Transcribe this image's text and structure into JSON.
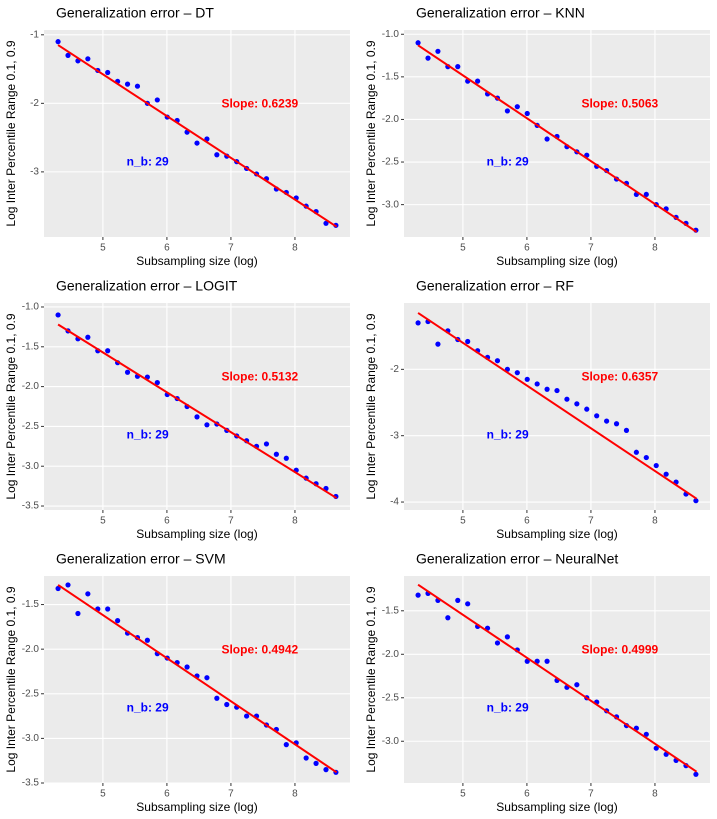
{
  "chart_data": [
    {
      "type": "scatter",
      "title": "Generalization error – DT",
      "x_label": "Subsampling size (log)",
      "y_label": "Log Inter Percentile Range 0.1, 0.9",
      "x": [
        4.3,
        4.455,
        4.61,
        4.765,
        4.92,
        5.075,
        5.23,
        5.385,
        5.54,
        5.695,
        5.85,
        6.005,
        6.16,
        6.315,
        6.47,
        6.625,
        6.78,
        6.935,
        7.09,
        7.245,
        7.4,
        7.555,
        7.71,
        7.865,
        8.02,
        8.175,
        8.33,
        8.485,
        8.64
      ],
      "values": [
        -1.1,
        -1.3,
        -1.38,
        -1.35,
        -1.52,
        -1.55,
        -1.68,
        -1.72,
        -1.75,
        -2.0,
        -1.95,
        -2.2,
        -2.25,
        -2.42,
        -2.58,
        -2.52,
        -2.75,
        -2.77,
        -2.85,
        -2.95,
        -3.03,
        -3.1,
        -3.25,
        -3.3,
        -3.38,
        -3.5,
        -3.58,
        -3.75,
        -3.78
      ],
      "color": "#0000ff",
      "fit": {
        "x": [
          4.3,
          8.65
        ],
        "y": [
          -1.15,
          -3.8
        ],
        "color": "#ff0000"
      },
      "annotations": [
        {
          "text": "Slope: 0.6239",
          "color": "#ff0000"
        },
        {
          "text": "n_b: 29",
          "color": "#0000ff"
        }
      ],
      "xlim": [
        4.08,
        8.86
      ],
      "ylim": [
        -3.95,
        -0.93
      ],
      "xticks": [
        5,
        6,
        7,
        8
      ],
      "yticks": [
        -3,
        -2,
        -1
      ],
      "grid": true
    },
    {
      "type": "scatter",
      "title": "Generalization error – KNN",
      "x_label": "Subsampling size (log)",
      "y_label": "Log Inter Percentile Range 0.1, 0.9",
      "x": [
        4.3,
        4.455,
        4.61,
        4.765,
        4.92,
        5.075,
        5.23,
        5.385,
        5.54,
        5.695,
        5.85,
        6.005,
        6.16,
        6.315,
        6.47,
        6.625,
        6.78,
        6.935,
        7.09,
        7.245,
        7.4,
        7.555,
        7.71,
        7.865,
        8.02,
        8.175,
        8.33,
        8.485,
        8.64
      ],
      "values": [
        -1.1,
        -1.28,
        -1.2,
        -1.38,
        -1.38,
        -1.55,
        -1.55,
        -1.7,
        -1.75,
        -1.9,
        -1.85,
        -1.93,
        -2.07,
        -2.23,
        -2.2,
        -2.32,
        -2.38,
        -2.42,
        -2.55,
        -2.6,
        -2.7,
        -2.75,
        -2.88,
        -2.88,
        -3.0,
        -3.05,
        -3.15,
        -3.22,
        -3.3
      ],
      "color": "#0000ff",
      "fit": {
        "x": [
          4.3,
          8.65
        ],
        "y": [
          -1.13,
          -3.32
        ],
        "color": "#ff0000"
      },
      "annotations": [
        {
          "text": "Slope: 0.5063",
          "color": "#ff0000"
        },
        {
          "text": "n_b: 29",
          "color": "#0000ff"
        }
      ],
      "xlim": [
        4.08,
        8.86
      ],
      "ylim": [
        -3.38,
        -0.95
      ],
      "xticks": [
        5,
        6,
        7,
        8
      ],
      "yticks": [
        {
          "value": -3,
          "label": "-3.0"
        },
        -2.5,
        {
          "value": -2,
          "label": "-2.0"
        },
        -1.5,
        {
          "value": -1,
          "label": "-1.0"
        }
      ],
      "grid": true
    },
    {
      "type": "scatter",
      "title": "Generalization error – LOGIT",
      "x_label": "Subsampling size (log)",
      "y_label": "Log Inter Percentile Range 0.1, 0.9",
      "x": [
        4.3,
        4.455,
        4.61,
        4.765,
        4.92,
        5.075,
        5.23,
        5.385,
        5.54,
        5.695,
        5.85,
        6.005,
        6.16,
        6.315,
        6.47,
        6.625,
        6.78,
        6.935,
        7.09,
        7.245,
        7.4,
        7.555,
        7.71,
        7.865,
        8.02,
        8.175,
        8.33,
        8.485,
        8.64
      ],
      "values": [
        -1.1,
        -1.3,
        -1.4,
        -1.38,
        -1.55,
        -1.55,
        -1.7,
        -1.82,
        -1.87,
        -1.88,
        -1.95,
        -2.1,
        -2.15,
        -2.25,
        -2.38,
        -2.48,
        -2.47,
        -2.55,
        -2.62,
        -2.68,
        -2.75,
        -2.72,
        -2.85,
        -2.9,
        -3.05,
        -3.15,
        -3.22,
        -3.28,
        -3.38
      ],
      "color": "#0000ff",
      "fit": {
        "x": [
          4.3,
          8.65
        ],
        "y": [
          -1.22,
          -3.4
        ],
        "color": "#ff0000"
      },
      "annotations": [
        {
          "text": "Slope: 0.5132",
          "color": "#ff0000"
        },
        {
          "text": "n_b: 29",
          "color": "#0000ff"
        }
      ],
      "xlim": [
        4.08,
        8.86
      ],
      "ylim": [
        -3.55,
        -0.95
      ],
      "xticks": [
        5,
        6,
        7,
        8
      ],
      "yticks": [
        -3.5,
        {
          "value": -3,
          "label": "-3.0"
        },
        -2.5,
        {
          "value": -2,
          "label": "-2.0"
        },
        -1.5,
        {
          "value": -1,
          "label": "-1.0"
        }
      ],
      "grid": true
    },
    {
      "type": "scatter",
      "title": "Generalization error – RF",
      "x_label": "Subsampling size (log)",
      "y_label": "Log Inter Percentile Range 0.1, 0.9",
      "x": [
        4.3,
        4.455,
        4.61,
        4.765,
        4.92,
        5.075,
        5.23,
        5.385,
        5.54,
        5.695,
        5.85,
        6.005,
        6.16,
        6.315,
        6.47,
        6.625,
        6.78,
        6.935,
        7.09,
        7.245,
        7.4,
        7.555,
        7.71,
        7.865,
        8.02,
        8.175,
        8.33,
        8.485,
        8.64
      ],
      "values": [
        -1.3,
        -1.28,
        -1.62,
        -1.42,
        -1.55,
        -1.58,
        -1.72,
        -1.82,
        -1.87,
        -2.0,
        -2.05,
        -2.15,
        -2.22,
        -2.3,
        -2.32,
        -2.45,
        -2.52,
        -2.6,
        -2.7,
        -2.78,
        -2.82,
        -2.92,
        -3.25,
        -3.33,
        -3.45,
        -3.58,
        -3.7,
        -3.88,
        -3.98
      ],
      "color": "#0000ff",
      "fit": {
        "x": [
          4.3,
          8.65
        ],
        "y": [
          -1.15,
          -3.95
        ],
        "color": "#ff0000"
      },
      "annotations": [
        {
          "text": "Slope: 0.6357",
          "color": "#ff0000"
        },
        {
          "text": "n_b: 29",
          "color": "#0000ff"
        }
      ],
      "xlim": [
        4.08,
        8.86
      ],
      "ylim": [
        -4.12,
        -1.0
      ],
      "xticks": [
        5,
        6,
        7,
        8
      ],
      "yticks": [
        -4,
        -3,
        -2
      ],
      "grid": true
    },
    {
      "type": "scatter",
      "title": "Generalization error – SVM",
      "x_label": "Subsampling size (log)",
      "y_label": "Log Inter Percentile Range 0.1, 0.9",
      "x": [
        4.3,
        4.455,
        4.61,
        4.765,
        4.92,
        5.075,
        5.23,
        5.385,
        5.54,
        5.695,
        5.85,
        6.005,
        6.16,
        6.315,
        6.47,
        6.625,
        6.78,
        6.935,
        7.09,
        7.245,
        7.4,
        7.555,
        7.71,
        7.865,
        8.02,
        8.175,
        8.33,
        8.485,
        8.64
      ],
      "values": [
        -1.32,
        -1.28,
        -1.6,
        -1.38,
        -1.55,
        -1.55,
        -1.68,
        -1.82,
        -1.87,
        -1.9,
        -2.05,
        -2.1,
        -2.15,
        -2.2,
        -2.3,
        -2.32,
        -2.55,
        -2.62,
        -2.65,
        -2.75,
        -2.75,
        -2.85,
        -2.9,
        -3.07,
        -3.05,
        -3.22,
        -3.28,
        -3.35,
        -3.38
      ],
      "color": "#0000ff",
      "fit": {
        "x": [
          4.3,
          8.65
        ],
        "y": [
          -1.28,
          -3.38
        ],
        "color": "#ff0000"
      },
      "annotations": [
        {
          "text": "Slope: 0.4942",
          "color": "#ff0000"
        },
        {
          "text": "n_b: 29",
          "color": "#0000ff"
        }
      ],
      "xlim": [
        4.08,
        8.86
      ],
      "ylim": [
        -3.5,
        -1.18
      ],
      "xticks": [
        5,
        6,
        7,
        8
      ],
      "yticks": [
        -3.5,
        {
          "value": -3,
          "label": "-3.0"
        },
        -2.5,
        {
          "value": -2,
          "label": "-2.0"
        },
        -1.5
      ],
      "grid": true
    },
    {
      "type": "scatter",
      "title": "Generalization error – NeuralNet",
      "x_label": "Subsampling size (log)",
      "y_label": "Log Inter Percentile Range 0.1, 0.9",
      "x": [
        4.3,
        4.455,
        4.61,
        4.765,
        4.92,
        5.075,
        5.23,
        5.385,
        5.54,
        5.695,
        5.85,
        6.005,
        6.16,
        6.315,
        6.47,
        6.625,
        6.78,
        6.935,
        7.09,
        7.245,
        7.4,
        7.555,
        7.71,
        7.865,
        8.02,
        8.175,
        8.33,
        8.485,
        8.64
      ],
      "values": [
        -1.32,
        -1.3,
        -1.38,
        -1.58,
        -1.38,
        -1.42,
        -1.68,
        -1.7,
        -1.87,
        -1.8,
        -1.95,
        -2.08,
        -2.08,
        -2.08,
        -2.3,
        -2.38,
        -2.35,
        -2.5,
        -2.55,
        -2.65,
        -2.72,
        -2.82,
        -2.85,
        -2.92,
        -3.08,
        -3.15,
        -3.22,
        -3.28,
        -3.38
      ],
      "color": "#0000ff",
      "fit": {
        "x": [
          4.3,
          8.65
        ],
        "y": [
          -1.2,
          -3.35
        ],
        "color": "#ff0000"
      },
      "annotations": [
        {
          "text": "Slope: 0.4999",
          "color": "#ff0000"
        },
        {
          "text": "n_b: 29",
          "color": "#0000ff"
        }
      ],
      "xlim": [
        4.08,
        8.86
      ],
      "ylim": [
        -3.48,
        -1.1
      ],
      "xticks": [
        5,
        6,
        7,
        8
      ],
      "yticks": [
        {
          "value": -3,
          "label": "-3.0"
        },
        -2.5,
        {
          "value": -2,
          "label": "-2.0"
        },
        -1.5
      ],
      "grid": true
    }
  ]
}
